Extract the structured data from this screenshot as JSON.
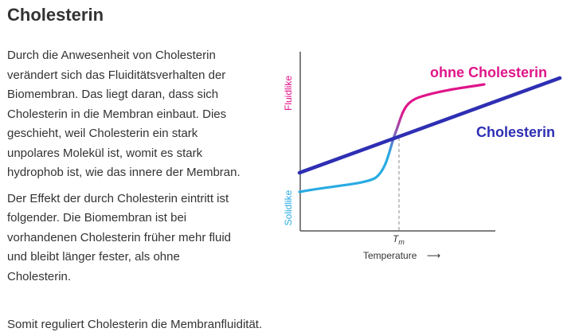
{
  "heading": "Cholesterin",
  "paragraphs": [
    "Durch die Anwesenheit von Cholesterin verändert sich das Fluiditätsverhalten der Biomembran. Das liegt daran, dass sich Cholesterin in die Membran einbaut. Dies geschieht, weil Cholesterin ein stark unpolares Molekül ist, womit es stark hydrophob ist, wie das innere der Membran.",
    "Der Effekt der durch Cholesterin eintritt ist folgender. Die Biomembran ist bei vorhandenen Cholesterin früher mehr fluid und bleibt länger fester, als ohne Cholesterin."
  ],
  "summary": "Somit reguliert Cholesterin die Membranfluidität.",
  "figure": {
    "y_label_top": "Fluidlike",
    "y_label_bottom": "Solidlike",
    "x_label": "Temperature",
    "x_arrow": "⟶",
    "tm_label": "T",
    "tm_sub": "m",
    "series": [
      {
        "name": "ohne Cholesterin",
        "color_low": "#29abe2",
        "color_high": "#e0158a"
      },
      {
        "name": "Cholesterin",
        "color": "#2e2fb3"
      }
    ],
    "colors": {
      "axis": "#555555",
      "y_top_label": "#e0158a",
      "y_bottom_label": "#29abe2",
      "tm_line": "#888888"
    }
  }
}
